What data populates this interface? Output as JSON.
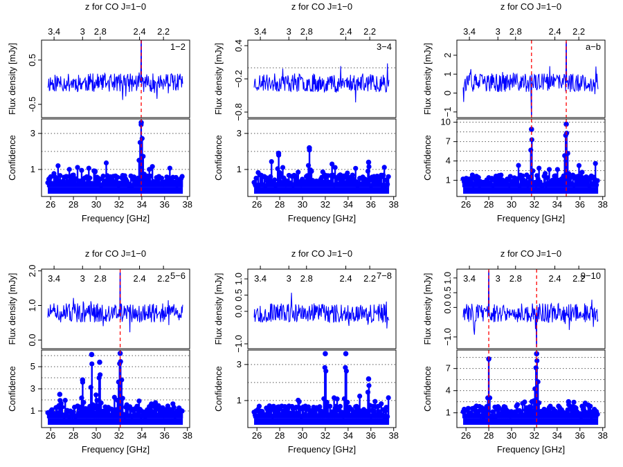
{
  "chart_data": [
    {
      "type": "line",
      "panel_label": "1−2",
      "top_axis_label": "z for CO J=1−0",
      "top_ticks": [
        "3.4",
        "3",
        "2.8",
        "2.4",
        "2.2"
      ],
      "top_tick_freq": [
        26.3,
        28.8,
        30.35,
        33.8,
        35.9
      ],
      "xlabel": "Frequency [GHz]",
      "x_ticks": [
        26,
        28,
        30,
        32,
        34,
        36,
        38
      ],
      "flux_ylabel": "Flux density [mJy]",
      "flux_ticks": [
        "-0.5",
        "0.5"
      ],
      "flux_tick_vals": [
        -0.5,
        0.5
      ],
      "flux_ylim": [
        -0.8,
        0.95
      ],
      "flux_hgrid": [],
      "conf_ylabel": "Confidence",
      "conf_ticks": [
        "1",
        "3"
      ],
      "conf_tick_vals": [
        1,
        3
      ],
      "conf_ylim": [
        -0.5,
        3.8
      ],
      "conf_grid": [
        1,
        2,
        3
      ],
      "seed": 11,
      "spikes": [
        {
          "freq": 33.95,
          "flux": 0.95,
          "conf": 3.7
        }
      ],
      "red_lines": [
        33.95
      ],
      "peaks": [
        {
          "freq": 33.95,
          "h": 3.6,
          "w": 0.35
        },
        {
          "freq": 29.9,
          "h": 0.9,
          "w": 0.25
        },
        {
          "freq": 35.5,
          "h": 0.6,
          "w": 0.25
        }
      ]
    },
    {
      "type": "line",
      "panel_label": "3−4",
      "top_axis_label": "z for CO J=1−0",
      "top_ticks": [
        "3.4",
        "3",
        "2.8",
        "2.4",
        "2.2"
      ],
      "top_tick_freq": [
        26.3,
        28.8,
        30.35,
        33.8,
        35.9
      ],
      "xlabel": "Frequency [GHz]",
      "x_ticks": [
        26,
        28,
        30,
        32,
        34,
        36,
        38
      ],
      "flux_ylabel": "Flux density [mJy]",
      "flux_ticks": [
        "−0.8",
        "−0.2",
        "0.4"
      ],
      "flux_tick_vals": [
        -0.8,
        -0.2,
        0.4
      ],
      "flux_ylim": [
        -0.9,
        0.5
      ],
      "flux_hgrid": [
        0.0
      ],
      "conf_ylabel": "Confidence",
      "conf_ticks": [
        "1",
        "3"
      ],
      "conf_tick_vals": [
        1,
        3
      ],
      "conf_ylim": [
        -0.5,
        3.8
      ],
      "conf_grid": [
        1,
        2,
        3
      ],
      "seed": 23,
      "spikes": [],
      "red_lines": [],
      "peaks": [
        {
          "freq": 27.9,
          "h": 1.9,
          "w": 0.2
        },
        {
          "freq": 30.6,
          "h": 2.2,
          "w": 0.2
        },
        {
          "freq": 35.8,
          "h": 1.4,
          "w": 0.2
        }
      ]
    },
    {
      "type": "line",
      "panel_label": "a−b",
      "top_axis_label": "z for CO J=1−0",
      "top_ticks": [
        "3.4",
        "3",
        "2.8",
        "2.4",
        "2.2"
      ],
      "top_tick_freq": [
        26.3,
        28.8,
        30.35,
        33.8,
        35.9
      ],
      "xlabel": "Frequency [GHz]",
      "x_ticks": [
        26,
        28,
        30,
        32,
        34,
        36,
        38
      ],
      "flux_ylabel": "Flux density [mJy]",
      "flux_ticks": [
        "−1",
        "0",
        "1",
        "2"
      ],
      "flux_tick_vals": [
        -1,
        0,
        1,
        2
      ],
      "flux_ylim": [
        -1.3,
        2.8
      ],
      "flux_hgrid": [],
      "conf_ylabel": "Confidence",
      "conf_ticks": [
        "1",
        "4",
        "7",
        "10"
      ],
      "conf_tick_vals": [
        1,
        4,
        7,
        10
      ],
      "conf_ylim": [
        -1.5,
        10.5
      ],
      "conf_grid": [
        1,
        2.5,
        4,
        5.5,
        7,
        8.5,
        10
      ],
      "seed": 37,
      "spikes": [
        {
          "freq": 34.8,
          "flux": 2.7,
          "conf": 9.7
        },
        {
          "freq": 31.75,
          "flux": -1.2,
          "conf": 8.9
        }
      ],
      "red_lines": [
        31.75,
        34.8
      ],
      "peaks": [
        {
          "freq": 31.75,
          "h": 8.9,
          "w": 0.18
        },
        {
          "freq": 34.8,
          "h": 9.7,
          "w": 0.3
        }
      ]
    },
    {
      "type": "line",
      "panel_label": "5−6",
      "top_axis_label": "z for CO J=1−0",
      "top_ticks": [
        "3.4",
        "3",
        "2.8",
        "2.4",
        "2.2"
      ],
      "top_tick_freq": [
        26.3,
        28.8,
        30.35,
        33.8,
        35.9
      ],
      "xlabel": "Frequency [GHz]",
      "x_ticks": [
        26,
        28,
        30,
        32,
        34,
        36,
        38
      ],
      "flux_ylabel": "Flux density [mJy]",
      "flux_ticks": [
        "0.0",
        "1.0",
        "2.0"
      ],
      "flux_tick_vals": [
        0.0,
        1.0,
        2.0
      ],
      "flux_ylim": [
        -0.25,
        2.05
      ],
      "flux_hgrid": [],
      "conf_ylabel": "Confidence",
      "conf_ticks": [
        "1",
        "3",
        "5"
      ],
      "conf_tick_vals": [
        1,
        3,
        5
      ],
      "conf_ylim": [
        -0.5,
        6.5
      ],
      "conf_grid": [
        1,
        2,
        3,
        4,
        5,
        6
      ],
      "seed": 51,
      "spikes": [
        {
          "freq": 32.1,
          "flux": 1.95,
          "conf": 6.3
        }
      ],
      "red_lines": [
        32.1
      ],
      "peaks": [
        {
          "freq": 32.1,
          "h": 6.2,
          "w": 0.35
        },
        {
          "freq": 29.6,
          "h": 6.1,
          "w": 0.15
        },
        {
          "freq": 30.3,
          "h": 5.4,
          "w": 0.2
        },
        {
          "freq": 28.8,
          "h": 3.8,
          "w": 0.2
        },
        {
          "freq": 26.8,
          "h": 2.5,
          "w": 0.15
        }
      ]
    },
    {
      "type": "line",
      "panel_label": "7−8",
      "top_axis_label": "z for CO J=1−0",
      "top_ticks": [
        "3.4",
        "3",
        "2.8",
        "2.4",
        "2.2"
      ],
      "top_tick_freq": [
        26.3,
        28.8,
        30.35,
        33.8,
        35.9
      ],
      "xlabel": "Frequency [GHz]",
      "x_ticks": [
        26,
        28,
        30,
        32,
        34,
        36,
        38
      ],
      "flux_ylabel": "Flux density [mJy]",
      "flux_ticks": [
        "−1.0",
        "0.0",
        "0.5",
        "1.0"
      ],
      "flux_tick_vals": [
        -1.0,
        0.0,
        0.5,
        1.0
      ],
      "flux_ylim": [
        -1.15,
        1.3
      ],
      "flux_hgrid": [],
      "conf_ylabel": "Confidence",
      "conf_ticks": [
        "1",
        "3"
      ],
      "conf_tick_vals": [
        1,
        3
      ],
      "conf_ylim": [
        -0.5,
        3.8
      ],
      "conf_grid": [
        1,
        2,
        3
      ],
      "seed": 67,
      "spikes": [],
      "red_lines": [],
      "peaks": [
        {
          "freq": 32.0,
          "h": 3.6,
          "w": 0.2
        },
        {
          "freq": 33.8,
          "h": 3.6,
          "w": 0.2
        },
        {
          "freq": 35.8,
          "h": 2.2,
          "w": 0.2
        }
      ]
    },
    {
      "type": "line",
      "panel_label": "9−10",
      "top_axis_label": "z for CO J=1−0",
      "top_ticks": [
        "3.4",
        "3",
        "2.8",
        "2.4",
        "2.2"
      ],
      "top_tick_freq": [
        26.3,
        28.8,
        30.35,
        33.8,
        35.9
      ],
      "xlabel": "Frequency [GHz]",
      "x_ticks": [
        26,
        28,
        30,
        32,
        34,
        36,
        38
      ],
      "flux_ylabel": "Flux density [mJy]",
      "flux_ticks": [
        "−1.0",
        "0.0",
        "0.5",
        "1.0"
      ],
      "flux_tick_vals": [
        -1.0,
        0.0,
        0.5,
        1.0
      ],
      "flux_ylim": [
        -1.4,
        1.3
      ],
      "flux_hgrid": [],
      "conf_ylabel": "Confidence",
      "conf_ticks": [
        "1",
        "4",
        "7"
      ],
      "conf_tick_vals": [
        1,
        4,
        7
      ],
      "conf_ylim": [
        -1.0,
        9.5
      ],
      "conf_grid": [
        1,
        2.5,
        4,
        5.5,
        7,
        8.5
      ],
      "seed": 83,
      "spikes": [
        {
          "freq": 28.0,
          "flux": 1.25,
          "conf": 8.3
        },
        {
          "freq": 32.2,
          "flux": -1.35,
          "conf": 9.0
        }
      ],
      "red_lines": [
        28.0,
        32.2
      ],
      "peaks": [
        {
          "freq": 28.0,
          "h": 8.3,
          "w": 0.15
        },
        {
          "freq": 32.2,
          "h": 9.0,
          "w": 0.3
        },
        {
          "freq": 35.0,
          "h": 2.5,
          "w": 0.15
        }
      ]
    }
  ],
  "colors": {
    "series": "#0000ff",
    "marker": "#0000ff",
    "red_line": "#ff0000",
    "axis": "#000000",
    "grid": "#555555"
  }
}
